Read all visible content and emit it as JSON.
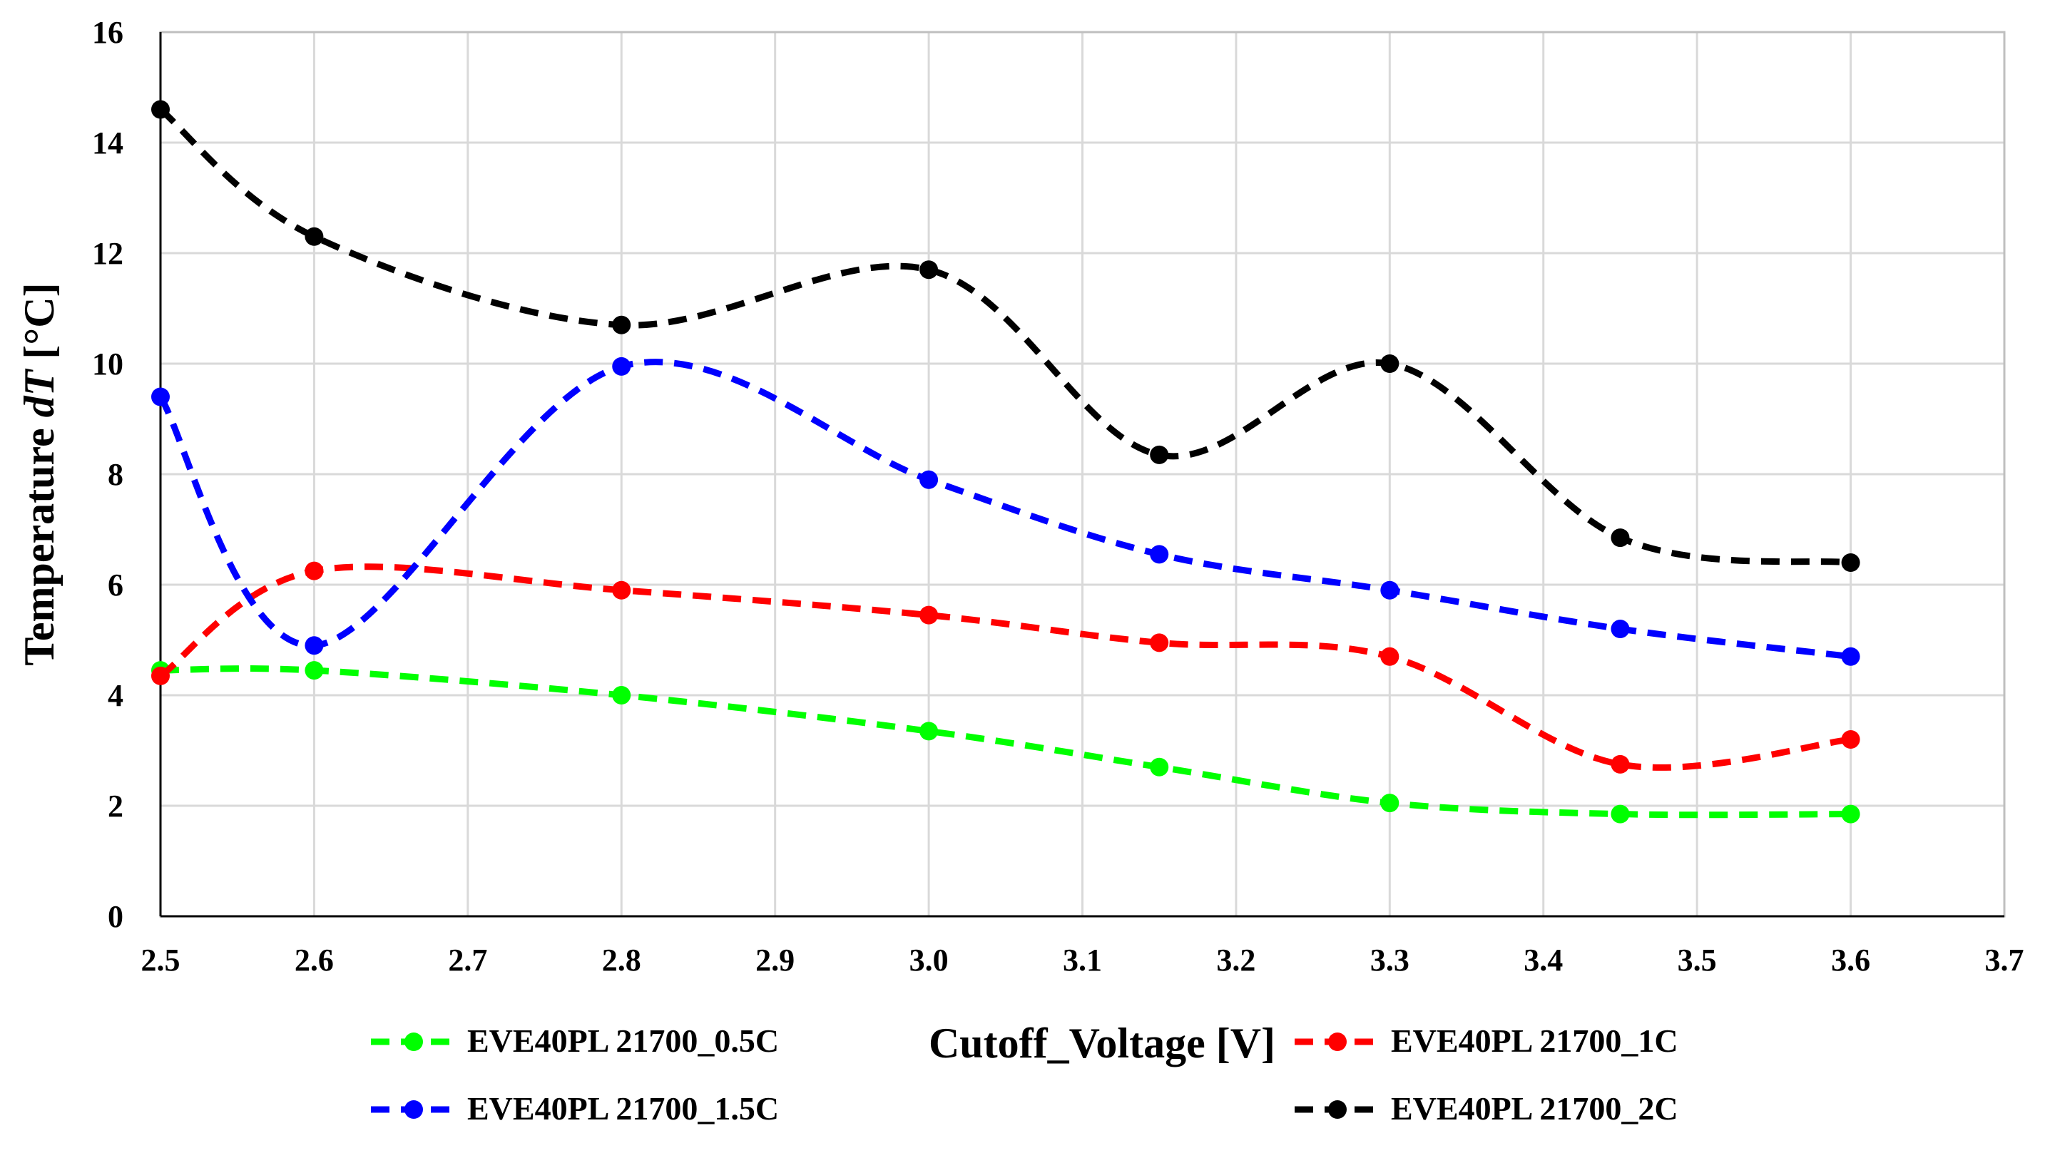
{
  "chart_data": {
    "type": "line",
    "title": "",
    "xlabel": "Cutoff_Voltage [V]",
    "ylabel_prefix": "Temperature ",
    "ylabel_italic": "dT",
    "ylabel_suffix": " [°C]",
    "xlim": [
      2.5,
      3.7
    ],
    "ylim": [
      0,
      16
    ],
    "x_ticks": [
      2.5,
      2.6,
      2.7,
      2.8,
      2.9,
      3.0,
      3.1,
      3.2,
      3.3,
      3.4,
      3.5,
      3.6,
      3.7
    ],
    "x_tick_labels": [
      "2.5",
      "2.6",
      "2.7",
      "2.8",
      "2.9",
      "3.0",
      "3.1",
      "3.2",
      "3.3",
      "3.4",
      "3.5",
      "3.6",
      "3.7"
    ],
    "y_ticks": [
      0,
      2,
      4,
      6,
      8,
      10,
      12,
      14,
      16
    ],
    "y_tick_labels": [
      "0",
      "2",
      "4",
      "6",
      "8",
      "10",
      "12",
      "14",
      "16"
    ],
    "grid": true,
    "legend_position": "bottom",
    "x": [
      2.5,
      2.6,
      2.8,
      3.0,
      3.15,
      3.3,
      3.45,
      3.6
    ],
    "series": [
      {
        "name": "EVE40PL 21700_0.5C",
        "color": "#00ff00",
        "values": [
          4.45,
          4.45,
          4.0,
          3.35,
          2.7,
          2.05,
          1.85,
          1.85
        ]
      },
      {
        "name": "EVE40PL 21700_1C",
        "color": "#ff0000",
        "values": [
          4.35,
          6.25,
          5.9,
          5.45,
          4.95,
          4.7,
          2.75,
          3.2
        ]
      },
      {
        "name": "EVE40PL 21700_1.5C",
        "color": "#0000ff",
        "values": [
          9.4,
          4.9,
          9.95,
          7.9,
          6.55,
          5.9,
          5.2,
          4.7
        ]
      },
      {
        "name": "EVE40PL 21700_2C",
        "color": "#000000",
        "values": [
          14.6,
          12.3,
          10.7,
          11.7,
          8.35,
          10.0,
          6.85,
          6.4
        ]
      }
    ]
  }
}
